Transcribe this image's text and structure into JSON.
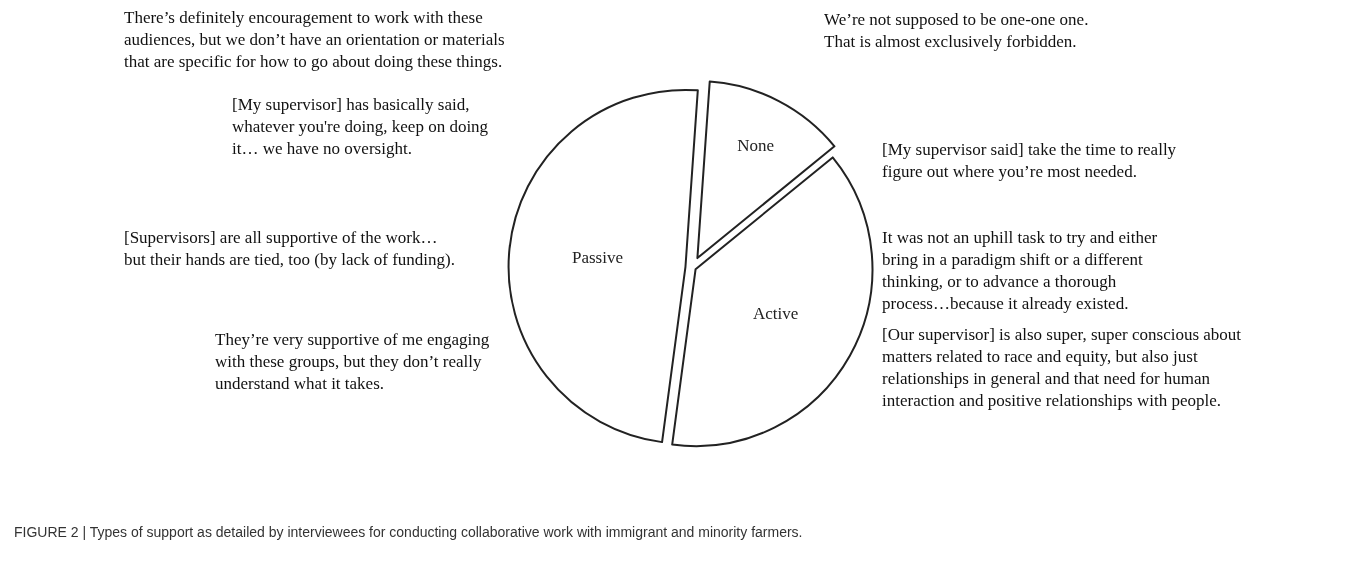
{
  "chart_data": {
    "type": "pie",
    "categories": [
      "None",
      "Active",
      "Passive"
    ],
    "values": [
      13,
      38,
      49
    ],
    "colors": [
      "#ffffff",
      "#ffffff",
      "#ffffff"
    ],
    "annotations": [
      "There’s definitely encouragement to work with these\naudiences, but we don’t have an orientation or materials\nthat are specific for how to go about doing these things.",
      "We’re not supposed to be one-one one.\nThat is almost exclusively forbidden.",
      "[My supervisor] has basically said,\nwhatever you're doing, keep on doing\nit… we have no oversight.",
      "[My supervisor said] take the time to really\nfigure out where you’re most needed.",
      "[Supervisors] are all supportive of the work…\nbut their hands are tied, too (by lack of funding).",
      "It was not an uphill task to try and either\nbring in a paradigm shift or a different\nthinking, or to advance a thorough\nprocess…because it already existed.",
      "They’re very supportive of me engaging\nwith these groups, but they don’t really\nunderstand what it takes.",
      "[Our supervisor] is also super, super conscious about\nmatters related to race and equity, but also just\nrelationships in general and that need for human\ninteraction and positive relationships with people.",
      "FIGURE 2 | Types of support as detailed by interviewees for conducting collaborative work with immigrant and minority farmers."
    ]
  }
}
